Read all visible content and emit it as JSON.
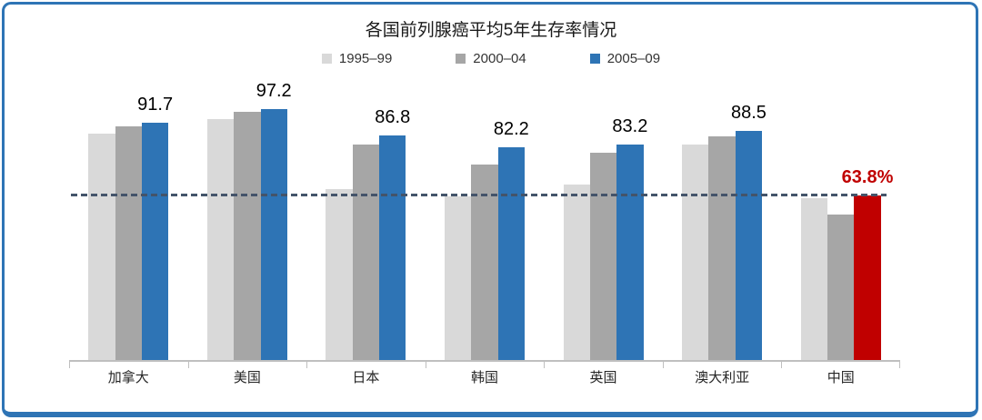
{
  "page": {
    "background": "#ffffff",
    "frame_border_color": "#2e74b5"
  },
  "chart_data": {
    "type": "bar",
    "title": "各国前列腺癌平均5年生存率情况",
    "categories": [
      "加拿大",
      "美国",
      "日本",
      "韩国",
      "英国",
      "澳大利亚",
      "中国"
    ],
    "series": [
      {
        "name": "1995–99",
        "color": "#d9d9d9",
        "values": [
          87.7,
          93.3,
          66.2,
          63.4,
          68.0,
          83.5,
          62.7
        ]
      },
      {
        "name": "2000–04",
        "color": "#a6a6a6",
        "values": [
          90.5,
          96.1,
          83.5,
          75.7,
          80.0,
          86.6,
          56.1
        ]
      },
      {
        "name": "2005–09",
        "color": "#2e74b5",
        "values": [
          91.7,
          97.2,
          86.8,
          82.2,
          83.2,
          88.5,
          63.8
        ]
      }
    ],
    "bar_labels": [
      {
        "text": "91.7",
        "color": "#000000",
        "bold": false
      },
      {
        "text": "97.2",
        "color": "#000000",
        "bold": false
      },
      {
        "text": "86.8",
        "color": "#000000",
        "bold": false
      },
      {
        "text": "82.2",
        "color": "#000000",
        "bold": false
      },
      {
        "text": "83.2",
        "color": "#000000",
        "bold": false
      },
      {
        "text": "88.5",
        "color": "#000000",
        "bold": false
      },
      {
        "text": "63.8%",
        "color": "#c00000",
        "bold": true
      }
    ],
    "highlight_bar": {
      "category_index": 6,
      "series_index": 2,
      "color": "#c00000"
    },
    "reference_line": {
      "value": 63.8,
      "color": "#44546a",
      "style": "dashed"
    },
    "ylim": [
      0,
      100
    ],
    "y_axis_visible": false,
    "grid": false,
    "legend_position": "top",
    "axis_color": "#bfbfbf"
  }
}
